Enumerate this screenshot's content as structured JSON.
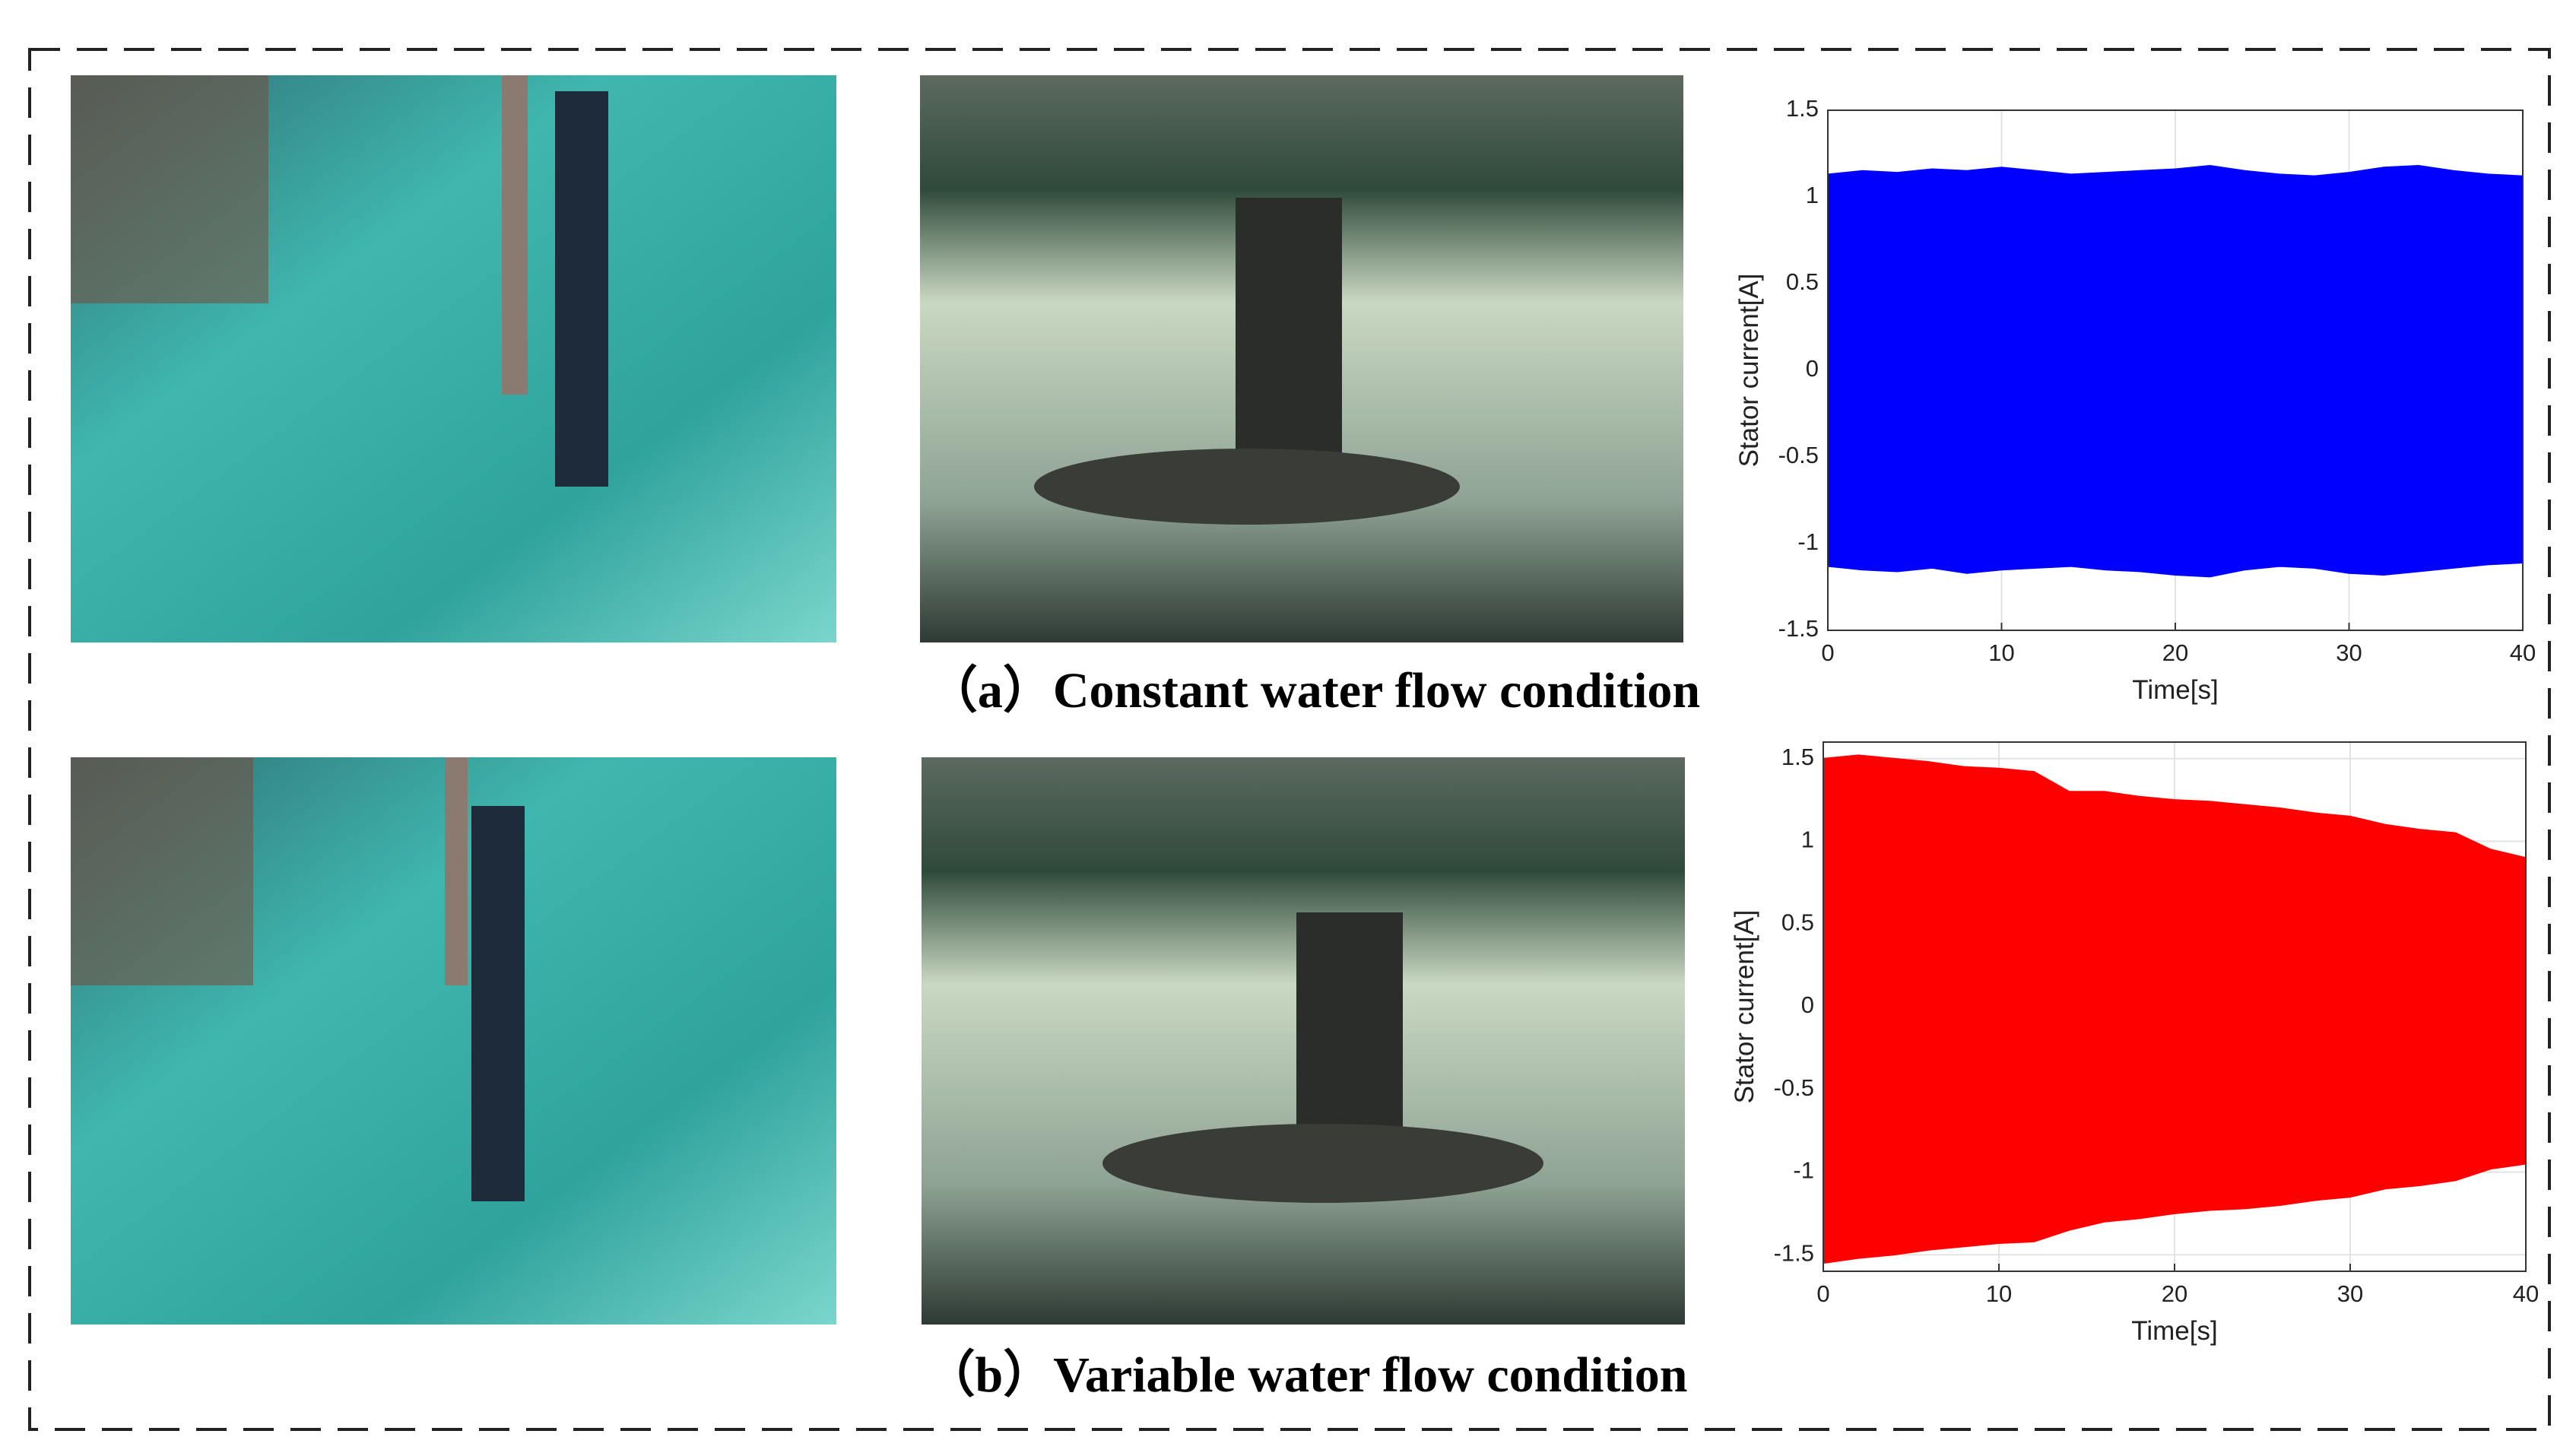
{
  "captions": [
    "（a）Constant water flow condition",
    "（b）Variable water flow condition"
  ],
  "chart_data": [
    {
      "type": "area",
      "xlabel": "Time[s]",
      "ylabel": "Stator current[A]",
      "xlim": [
        0,
        40
      ],
      "ylim": [
        -1.5,
        1.5
      ],
      "xticks": [
        0,
        10,
        20,
        30,
        40
      ],
      "yticks": [
        -1.5,
        -1,
        -0.5,
        0,
        0.5,
        1,
        1.5
      ],
      "grid": true,
      "x": [
        0,
        2,
        4,
        6,
        8,
        10,
        12,
        14,
        16,
        18,
        20,
        22,
        24,
        26,
        28,
        30,
        32,
        34,
        36,
        38,
        40
      ],
      "series": [
        {
          "color": "#0000ff",
          "values": [
            1.13,
            1.15,
            1.14,
            1.16,
            1.15,
            1.17,
            1.15,
            1.13,
            1.14,
            1.15,
            1.16,
            1.18,
            1.15,
            1.13,
            1.12,
            1.14,
            1.17,
            1.18,
            1.15,
            1.13,
            1.12
          ]
        },
        {
          "color": "#0000ff",
          "values": [
            -1.13,
            -1.15,
            -1.16,
            -1.14,
            -1.17,
            -1.15,
            -1.14,
            -1.13,
            -1.15,
            -1.16,
            -1.18,
            -1.19,
            -1.15,
            -1.13,
            -1.14,
            -1.17,
            -1.18,
            -1.16,
            -1.14,
            -1.12,
            -1.11
          ]
        }
      ]
    },
    {
      "type": "area",
      "xlabel": "Time[s]",
      "ylabel": "Stator current[A]",
      "xlim": [
        0,
        40
      ],
      "ylim": [
        -1.6,
        1.6
      ],
      "xticks": [
        0,
        10,
        20,
        30,
        40
      ],
      "yticks": [
        -1.5,
        -1,
        -0.5,
        0,
        0.5,
        1,
        1.5
      ],
      "grid": true,
      "x": [
        0,
        2,
        4,
        6,
        8,
        10,
        12,
        14,
        16,
        18,
        20,
        22,
        24,
        26,
        28,
        30,
        32,
        34,
        36,
        38,
        40
      ],
      "series": [
        {
          "color": "#ff0000",
          "values": [
            1.5,
            1.52,
            1.5,
            1.48,
            1.45,
            1.44,
            1.42,
            1.3,
            1.3,
            1.27,
            1.25,
            1.24,
            1.22,
            1.2,
            1.17,
            1.15,
            1.1,
            1.07,
            1.05,
            0.95,
            0.9
          ]
        },
        {
          "color": "#ff0000",
          "values": [
            -1.55,
            -1.52,
            -1.5,
            -1.47,
            -1.45,
            -1.43,
            -1.42,
            -1.35,
            -1.3,
            -1.28,
            -1.25,
            -1.23,
            -1.22,
            -1.2,
            -1.17,
            -1.15,
            -1.1,
            -1.08,
            -1.05,
            -0.98,
            -0.95
          ]
        }
      ]
    }
  ]
}
